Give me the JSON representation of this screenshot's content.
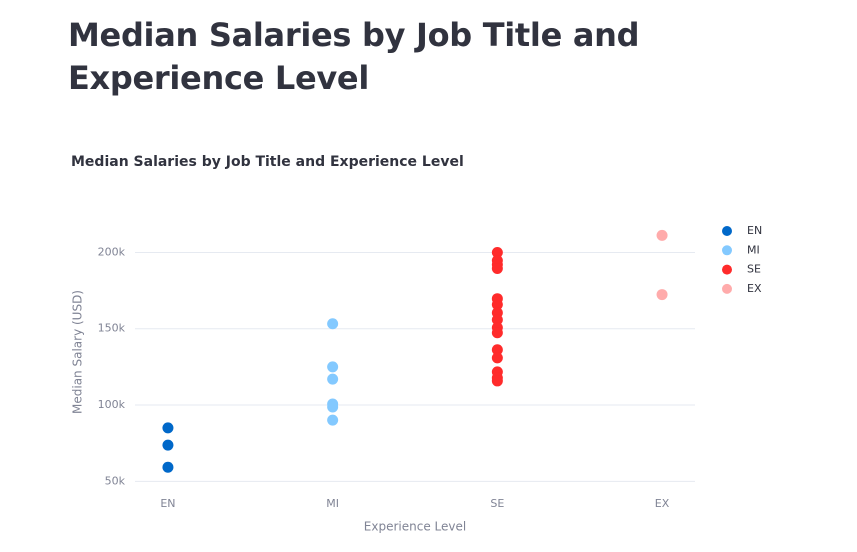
{
  "page_title": "Median Salaries by Job Title and Experience Level",
  "chart_data": {
    "type": "scatter",
    "title": "Median Salaries by Job Title and Experience Level",
    "x_label": "Experience Level",
    "y_label": "Median Salary (USD)",
    "categories": [
      "EN",
      "MI",
      "SE",
      "EX"
    ],
    "series": [
      {
        "name": "EN",
        "color": "#0068c9",
        "x": [
          "EN",
          "EN",
          "EN"
        ],
        "values": [
          85000,
          73700,
          59200
        ]
      },
      {
        "name": "MI",
        "color": "#83c9ff",
        "x": [
          "MI",
          "MI",
          "MI",
          "MI",
          "MI",
          "MI"
        ],
        "values": [
          153300,
          125000,
          117000,
          100700,
          98700,
          90100
        ]
      },
      {
        "name": "SE",
        "color": "#ff2b2b",
        "x": [
          "SE",
          "SE",
          "SE",
          "SE",
          "SE",
          "SE",
          "SE",
          "SE",
          "SE",
          "SE",
          "SE",
          "SE",
          "SE",
          "SE",
          "SE"
        ],
        "values": [
          200000,
          194700,
          192000,
          189500,
          169700,
          165800,
          160500,
          155900,
          150700,
          147400,
          136200,
          130900,
          121700,
          117800,
          115800
        ]
      },
      {
        "name": "EX",
        "color": "#ffabab",
        "x": [
          "EX",
          "EX"
        ],
        "values": [
          211200,
          172400
        ]
      }
    ],
    "ylim": [
      43000,
      218000
    ],
    "yticks": [
      {
        "value": 50000,
        "label": "50k"
      },
      {
        "value": 100000,
        "label": "100k"
      },
      {
        "value": 150000,
        "label": "150k"
      },
      {
        "value": 200000,
        "label": "200k"
      }
    ],
    "grid": true,
    "legend": "right"
  }
}
